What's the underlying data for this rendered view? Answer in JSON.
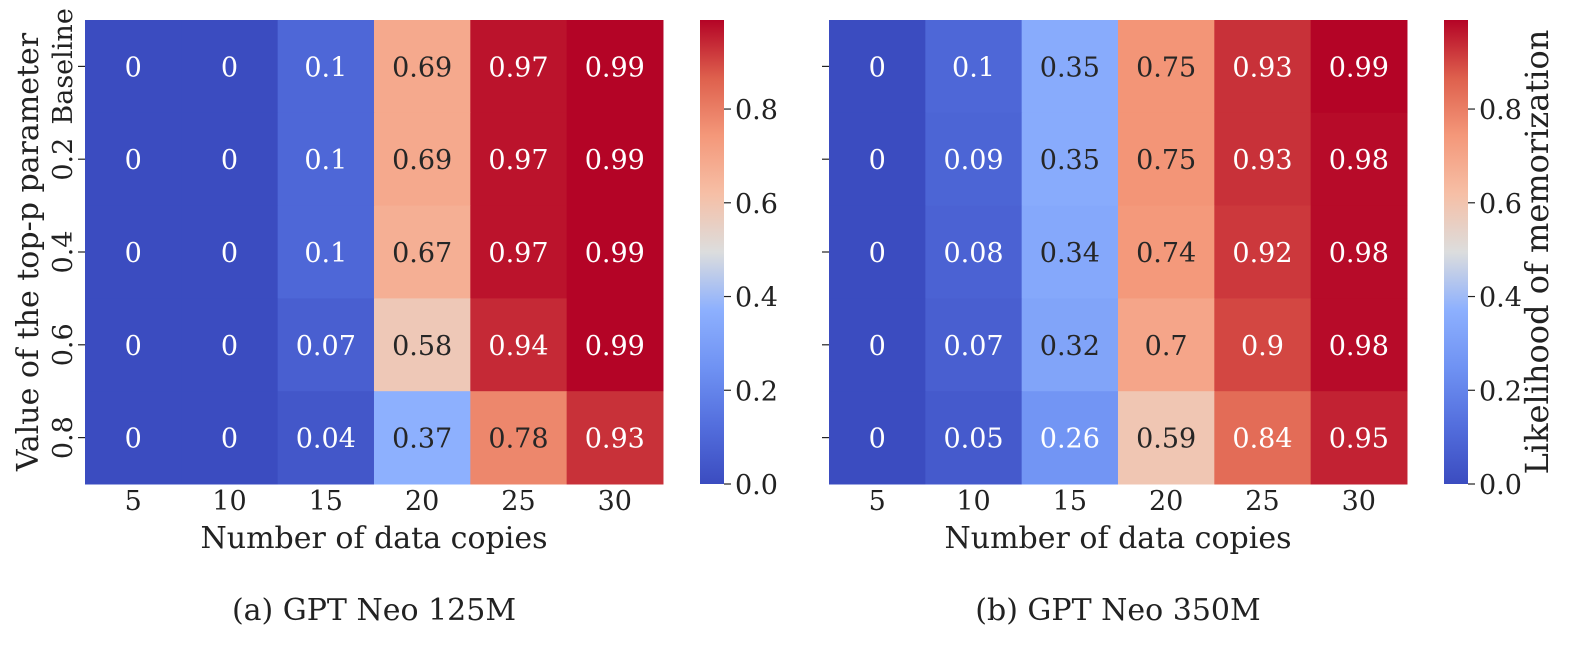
{
  "chart_data": [
    {
      "type": "heatmap",
      "caption": "(a) GPT Neo 125M",
      "xlabel": "Number of data copies",
      "ylabel": "Value of the top-p parameter",
      "x_categories": [
        "5",
        "10",
        "15",
        "20",
        "25",
        "30"
      ],
      "y_categories": [
        "Baseline",
        "0.2",
        "0.4",
        "0.6",
        "0.8"
      ],
      "values": [
        [
          0,
          0,
          0.1,
          0.69,
          0.97,
          0.99
        ],
        [
          0,
          0,
          0.1,
          0.69,
          0.97,
          0.99
        ],
        [
          0,
          0,
          0.1,
          0.67,
          0.97,
          0.99
        ],
        [
          0,
          0,
          0.07,
          0.58,
          0.94,
          0.99
        ],
        [
          0,
          0,
          0.04,
          0.37,
          0.78,
          0.93
        ]
      ],
      "colorbar": {
        "ticks": [
          "0.0",
          "0.2",
          "0.4",
          "0.6",
          "0.8"
        ],
        "range": [
          0,
          0.99
        ],
        "label": ""
      }
    },
    {
      "type": "heatmap",
      "caption": "(b) GPT Neo 350M",
      "xlabel": "Number of data copies",
      "ylabel": "",
      "x_categories": [
        "5",
        "10",
        "15",
        "20",
        "25",
        "30"
      ],
      "y_categories": [
        "Baseline",
        "0.2",
        "0.4",
        "0.6",
        "0.8"
      ],
      "values": [
        [
          0,
          0.1,
          0.35,
          0.75,
          0.93,
          0.99
        ],
        [
          0,
          0.09,
          0.35,
          0.75,
          0.93,
          0.98
        ],
        [
          0,
          0.08,
          0.34,
          0.74,
          0.92,
          0.98
        ],
        [
          0,
          0.07,
          0.32,
          0.7,
          0.9,
          0.98
        ],
        [
          0,
          0.05,
          0.26,
          0.59,
          0.84,
          0.95
        ]
      ],
      "colorbar": {
        "ticks": [
          "0.0",
          "0.2",
          "0.4",
          "0.6",
          "0.8"
        ],
        "range": [
          0,
          0.99
        ],
        "label": "Likelihood of memorization"
      }
    }
  ],
  "colormap": "coolwarm"
}
